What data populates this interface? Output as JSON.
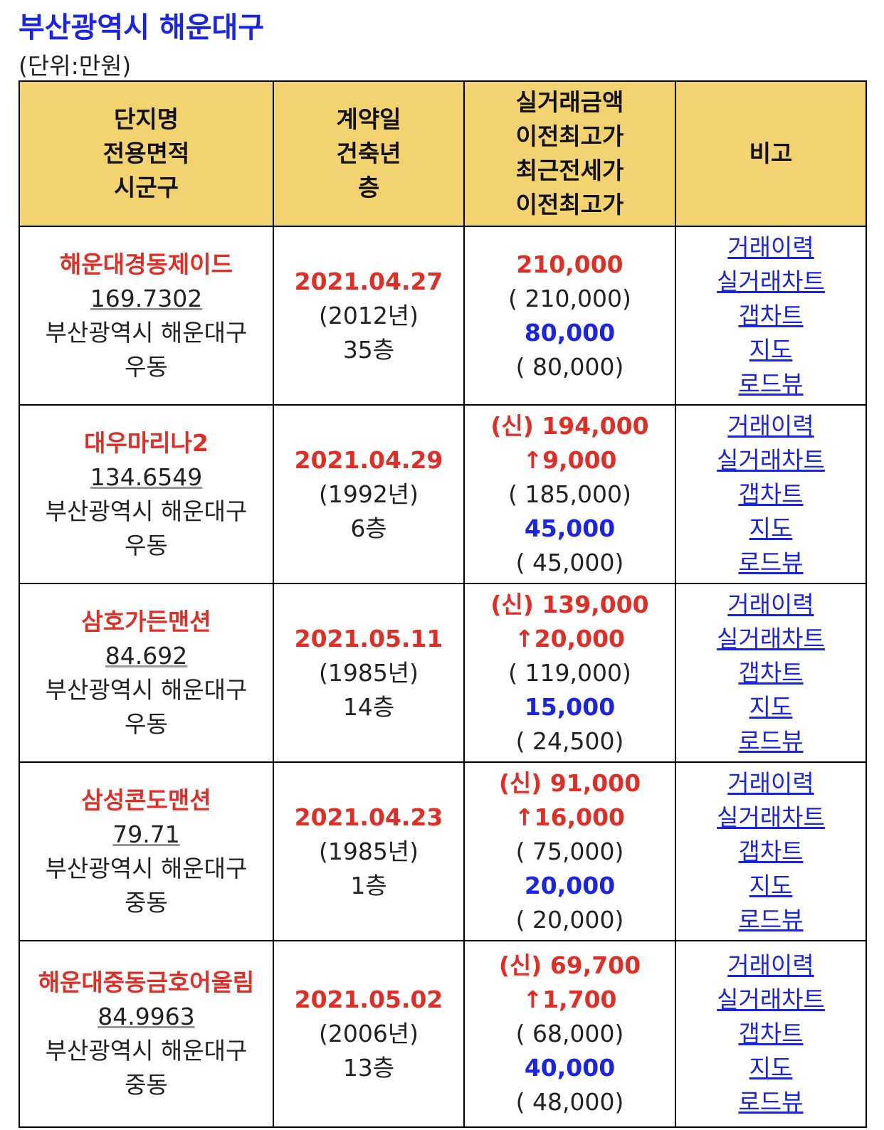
{
  "title": "부산광역시 해운대구",
  "unit": "(단위:만원)",
  "headers": [
    [
      "단지명",
      "전용면적",
      "시군구"
    ],
    [
      "계약일",
      "건축년",
      "층"
    ],
    [
      "실거래금액",
      "이전최고가",
      "최근전세가",
      "이전최고가"
    ],
    [
      "비고"
    ]
  ],
  "links": [
    "거래이력",
    "실거래차트",
    "갭차트",
    "지도",
    "로드뷰"
  ],
  "rows": [
    {
      "name": "해운대경동제이드",
      "area": "169.7302",
      "city": "부산광역시 해운대구",
      "dong": "우동",
      "date": "2021.04.27",
      "built": "(2012년)",
      "floor": "35층",
      "price": "210,000",
      "change": "",
      "prev_high": "( 210,000)",
      "jeonse": "80,000",
      "jeonse_high": "( 80,000)"
    },
    {
      "name": "대우마리나2",
      "area": "134.6549",
      "city": "부산광역시 해운대구",
      "dong": "우동",
      "date": "2021.04.29",
      "built": "(1992년)",
      "floor": "6층",
      "price": "(신) 194,000",
      "change": "↑9,000",
      "prev_high": "( 185,000)",
      "jeonse": "45,000",
      "jeonse_high": "( 45,000)"
    },
    {
      "name": "삼호가든맨션",
      "area": "84.692",
      "city": "부산광역시 해운대구",
      "dong": "우동",
      "date": "2021.05.11",
      "built": "(1985년)",
      "floor": "14층",
      "price": "(신) 139,000",
      "change": "↑20,000",
      "prev_high": "( 119,000)",
      "jeonse": "15,000",
      "jeonse_high": "( 24,500)"
    },
    {
      "name": "삼성콘도맨션",
      "area": "79.71",
      "city": "부산광역시 해운대구",
      "dong": "중동",
      "date": "2021.04.23",
      "built": "(1985년)",
      "floor": "1층",
      "price": "(신) 91,000",
      "change": "↑16,000",
      "prev_high": "( 75,000)",
      "jeonse": "20,000",
      "jeonse_high": "( 20,000)"
    },
    {
      "name": "해운대중동금호어울림",
      "area": "84.9963",
      "city": "부산광역시 해운대구",
      "dong": "중동",
      "date": "2021.05.02",
      "built": "(2006년)",
      "floor": "13층",
      "price": "(신) 69,700",
      "change": "↑1,700",
      "prev_high": "( 68,000)",
      "jeonse": "40,000",
      "jeonse_high": "( 48,000)"
    }
  ]
}
